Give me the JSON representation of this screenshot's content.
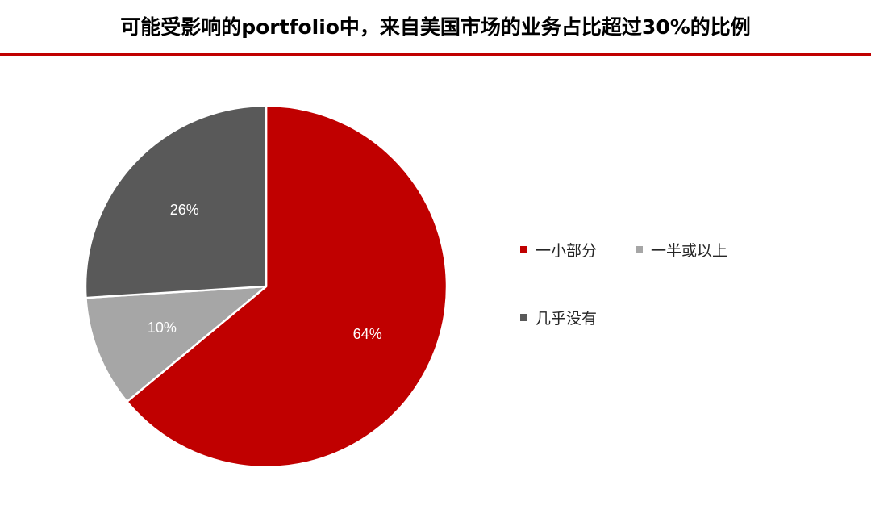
{
  "title": "可能受影响的portfolio中，来自美国市场的业务占比超过30%的比例",
  "colors": {
    "accent_rule": "#c00000",
    "slice_border": "#ffffff",
    "label_text": "#ffffff"
  },
  "chart_data": {
    "type": "pie",
    "title": "可能受影响的portfolio中，来自美国市场的业务占比超过30%的比例",
    "slices": [
      {
        "label": "一小部分",
        "value": 64,
        "display": "64%",
        "color": "#c00000"
      },
      {
        "label": "一半或以上",
        "value": 10,
        "display": "10%",
        "color": "#a6a6a6"
      },
      {
        "label": "几乎没有",
        "value": 26,
        "display": "26%",
        "color": "#595959"
      }
    ],
    "start_angle_deg": 0,
    "direction": "clockwise",
    "legend_position": "right"
  }
}
